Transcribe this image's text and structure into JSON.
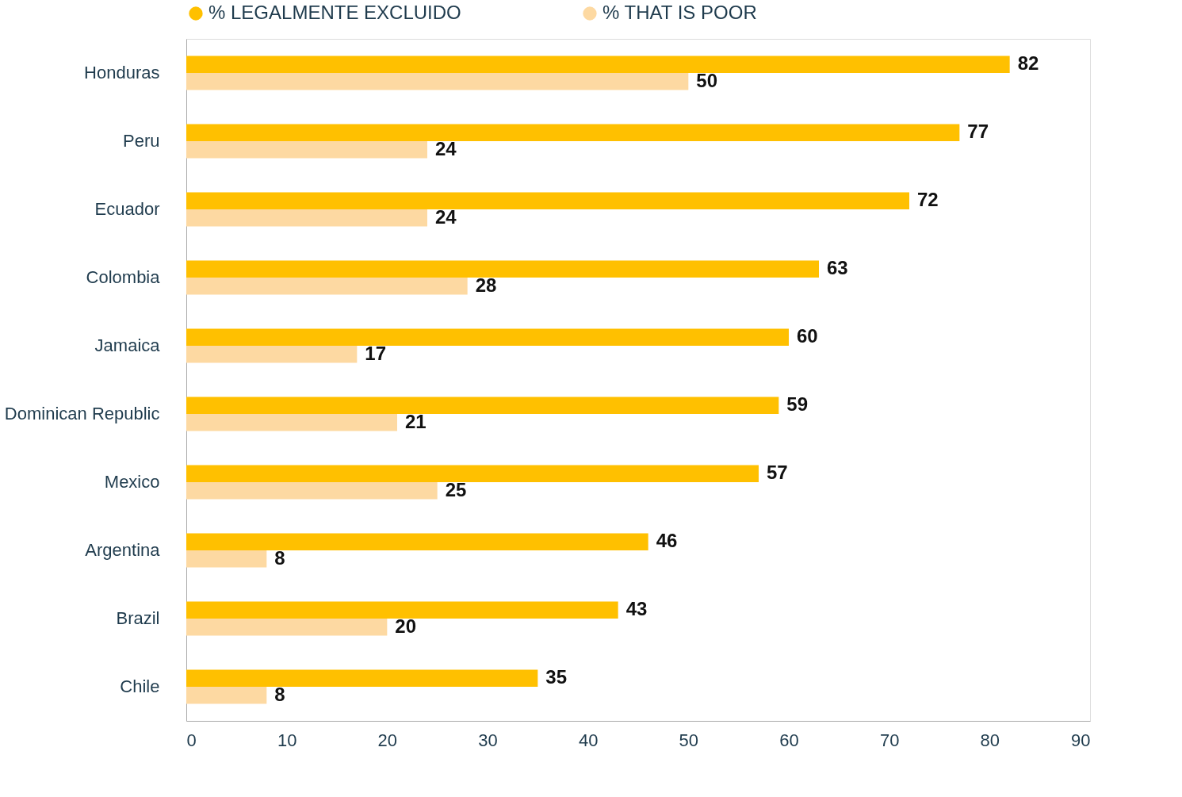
{
  "chart_data": {
    "type": "bar",
    "orientation": "horizontal",
    "categories": [
      "Honduras",
      "Peru",
      "Ecuador",
      "Colombia",
      "Jamaica",
      "Dominican Republic",
      "Mexico",
      "Argentina",
      "Brazil",
      "Chile"
    ],
    "series": [
      {
        "name": "% LEGALMENTE EXCLUIDO",
        "color": "#ffc000",
        "values": [
          82,
          77,
          72,
          63,
          60,
          59,
          57,
          46,
          43,
          35
        ]
      },
      {
        "name": "% THAT IS POOR",
        "color": "#fdd9a2",
        "values": [
          50,
          24,
          24,
          28,
          17,
          21,
          25,
          8,
          20,
          8
        ]
      }
    ],
    "xlim": [
      0,
      90
    ],
    "xticks": [
      0,
      10,
      20,
      30,
      40,
      50,
      60,
      70,
      80,
      90
    ],
    "data_labels": true,
    "grid": false,
    "legend": "top left"
  }
}
